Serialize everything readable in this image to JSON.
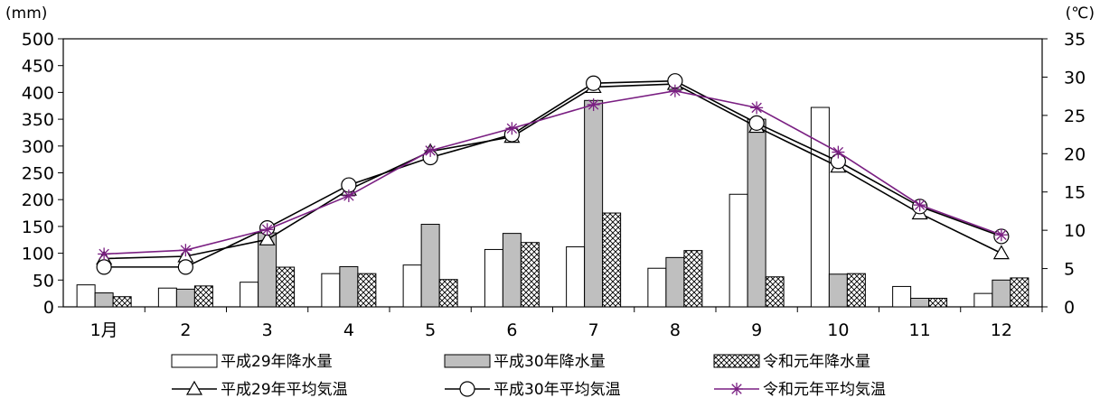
{
  "chart_data": {
    "type": "bar",
    "categories": [
      "1月",
      "2",
      "3",
      "4",
      "5",
      "6",
      "7",
      "8",
      "9",
      "10",
      "11",
      "12"
    ],
    "y_left": {
      "unit": "(mm)",
      "ticks": [
        "0",
        "50",
        "100",
        "150",
        "200",
        "250",
        "300",
        "350",
        "400",
        "450",
        "500"
      ],
      "ylim": [
        0,
        500
      ]
    },
    "y_right": {
      "unit": "(℃)",
      "ticks": [
        "0",
        "5",
        "10",
        "15",
        "20",
        "25",
        "30",
        "35"
      ],
      "ylim": [
        0,
        35
      ]
    },
    "bar_series": [
      {
        "name": "平成29年降水量",
        "style": "white",
        "values": [
          41,
          35,
          46,
          62,
          78,
          107,
          112,
          72,
          210,
          372,
          38,
          25
        ]
      },
      {
        "name": "平成30年降水量",
        "style": "gray",
        "values": [
          26,
          33,
          138,
          75,
          154,
          137,
          385,
          92,
          350,
          61,
          16,
          50
        ]
      },
      {
        "name": "令和元年降水量",
        "style": "hatch",
        "values": [
          19,
          39,
          74,
          62,
          51,
          120,
          175,
          105,
          56,
          62,
          16,
          54
        ]
      }
    ],
    "line_series": [
      {
        "name": "平成29年平均気温",
        "marker": "triangle",
        "color": "#000000",
        "values": [
          6.3,
          6.6,
          8.8,
          15.3,
          20.3,
          22.2,
          28.7,
          29.1,
          23.5,
          18.3,
          12.2,
          7.0
        ]
      },
      {
        "name": "平成30年平均気温",
        "marker": "circle",
        "color": "#000000",
        "values": [
          5.2,
          5.2,
          10.3,
          15.9,
          19.5,
          22.5,
          29.2,
          29.5,
          24.0,
          19.0,
          13.1,
          9.2
        ]
      },
      {
        "name": "令和元年平均気温",
        "marker": "star",
        "color": "#7a1f82",
        "values": [
          6.9,
          7.4,
          10.1,
          14.5,
          20.4,
          23.3,
          26.4,
          28.2,
          26.0,
          20.2,
          13.3,
          9.4
        ]
      }
    ],
    "grid": false,
    "legend_position": "bottom"
  }
}
